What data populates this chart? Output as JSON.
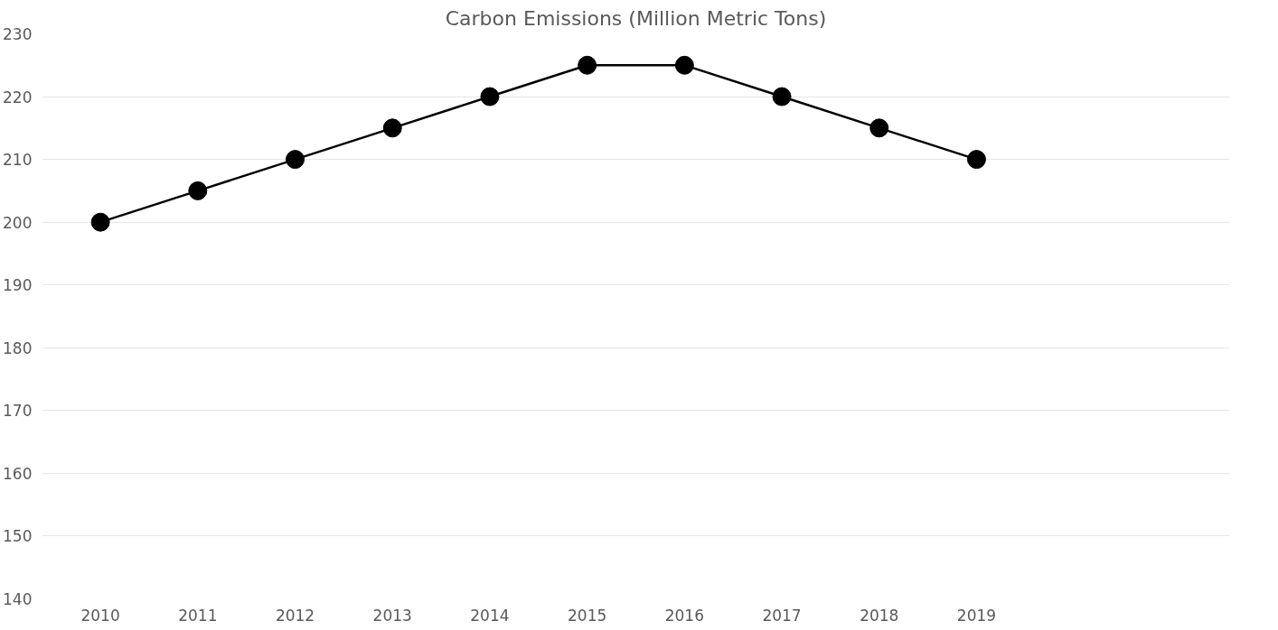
{
  "chart_data": {
    "type": "line",
    "title": "Carbon Emissions (Million Metric Tons)",
    "categories": [
      "2010",
      "2011",
      "2012",
      "2013",
      "2014",
      "2015",
      "2016",
      "2017",
      "2018",
      "2019"
    ],
    "values": [
      200,
      205,
      210,
      215,
      220,
      225,
      225,
      220,
      215,
      210
    ],
    "color": "#000000",
    "ylim": [
      140,
      230
    ],
    "yticks": [
      140,
      150,
      160,
      170,
      180,
      190,
      200,
      210,
      220,
      230
    ],
    "grid": "y",
    "marker": "circle",
    "line_style": "solid"
  }
}
